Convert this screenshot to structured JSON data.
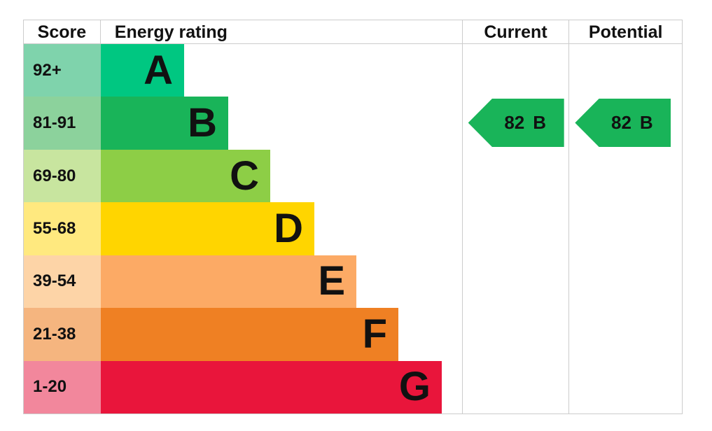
{
  "header": {
    "score": "Score",
    "energy_rating": "Energy rating",
    "current": "Current",
    "potential": "Potential"
  },
  "bands": [
    {
      "score": "92+",
      "letter": "A",
      "bar_color": "#00c781",
      "score_color": "#7fd3ac"
    },
    {
      "score": "81-91",
      "letter": "B",
      "bar_color": "#19b459",
      "score_color": "#8cd29c"
    },
    {
      "score": "69-80",
      "letter": "C",
      "bar_color": "#8dce46",
      "score_color": "#c8e59f"
    },
    {
      "score": "55-68",
      "letter": "D",
      "bar_color": "#ffd500",
      "score_color": "#ffe97f"
    },
    {
      "score": "39-54",
      "letter": "E",
      "bar_color": "#fcaa65",
      "score_color": "#fdd4a7"
    },
    {
      "score": "21-38",
      "letter": "F",
      "bar_color": "#ef8023",
      "score_color": "#f5b57f"
    },
    {
      "score": "1-20",
      "letter": "G",
      "bar_color": "#e9153b",
      "score_color": "#f2879c"
    }
  ],
  "current": {
    "value": "82",
    "letter": "B",
    "arrow_color": "#19b459"
  },
  "potential": {
    "value": "82",
    "letter": "B",
    "arrow_color": "#19b459"
  },
  "chart_data": {
    "type": "bar",
    "title": "Energy rating",
    "categories": [
      "A",
      "B",
      "C",
      "D",
      "E",
      "F",
      "G"
    ],
    "score_ranges": [
      "92+",
      "81-91",
      "69-80",
      "55-68",
      "39-54",
      "21-38",
      "1-20"
    ],
    "band_colors": [
      "#00c781",
      "#19b459",
      "#8dce46",
      "#ffd500",
      "#fcaa65",
      "#ef8023",
      "#e9153b"
    ],
    "bar_relative_lengths": [
      119,
      182,
      242,
      305,
      365,
      425,
      487
    ],
    "series": [
      {
        "name": "Current",
        "score": 82,
        "rating": "B"
      },
      {
        "name": "Potential",
        "score": 82,
        "rating": "B"
      }
    ],
    "legend_position": "none",
    "grid": false
  }
}
